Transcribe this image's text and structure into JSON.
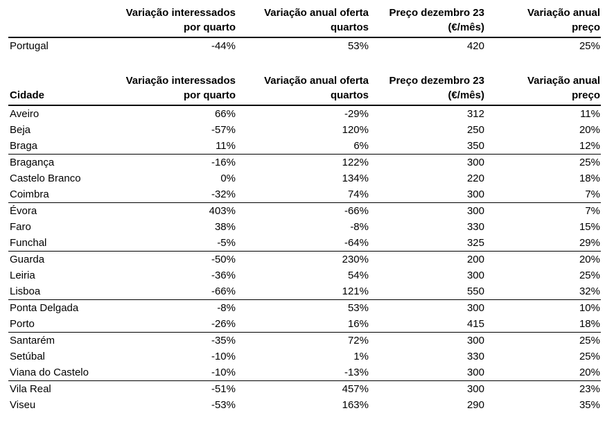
{
  "chart_data": {
    "type": "table",
    "column_headers": [
      {
        "line1": "Variação interessados",
        "line2": "por quarto"
      },
      {
        "line1": "Variação anual oferta",
        "line2": "quartos"
      },
      {
        "line1": "Preço dezembro 23",
        "line2": "(€/mês)"
      },
      {
        "line1": "Variação anual",
        "line2": "preço"
      }
    ],
    "summary": {
      "label": "Portugal",
      "values": [
        "-44%",
        "53%",
        "420",
        "25%"
      ]
    },
    "city_header": "Cidade",
    "rows": [
      {
        "city": "Aveiro",
        "values": [
          "66%",
          "-29%",
          "312",
          "11%"
        ],
        "group_end": false
      },
      {
        "city": "Beja",
        "values": [
          "-57%",
          "120%",
          "250",
          "20%"
        ],
        "group_end": false
      },
      {
        "city": "Braga",
        "values": [
          "11%",
          "6%",
          "350",
          "12%"
        ],
        "group_end": true
      },
      {
        "city": "Bragança",
        "values": [
          "-16%",
          "122%",
          "300",
          "25%"
        ],
        "group_end": false
      },
      {
        "city": "Castelo Branco",
        "values": [
          "0%",
          "134%",
          "220",
          "18%"
        ],
        "group_end": false
      },
      {
        "city": "Coimbra",
        "values": [
          "-32%",
          "74%",
          "300",
          "7%"
        ],
        "group_end": true
      },
      {
        "city": "Évora",
        "values": [
          "403%",
          "-66%",
          "300",
          "7%"
        ],
        "group_end": false
      },
      {
        "city": "Faro",
        "values": [
          "38%",
          "-8%",
          "330",
          "15%"
        ],
        "group_end": false
      },
      {
        "city": "Funchal",
        "values": [
          "-5%",
          "-64%",
          "325",
          "29%"
        ],
        "group_end": true
      },
      {
        "city": "Guarda",
        "values": [
          "-50%",
          "230%",
          "200",
          "20%"
        ],
        "group_end": false
      },
      {
        "city": "Leiria",
        "values": [
          "-36%",
          "54%",
          "300",
          "25%"
        ],
        "group_end": false
      },
      {
        "city": "Lisboa",
        "values": [
          "-66%",
          "121%",
          "550",
          "32%"
        ],
        "group_end": true
      },
      {
        "city": "Ponta Delgada",
        "values": [
          "-8%",
          "53%",
          "300",
          "10%"
        ],
        "group_end": false
      },
      {
        "city": "Porto",
        "values": [
          "-26%",
          "16%",
          "415",
          "18%"
        ],
        "group_end": true
      },
      {
        "city": "Santarém",
        "values": [
          "-35%",
          "72%",
          "300",
          "25%"
        ],
        "group_end": false
      },
      {
        "city": "Setúbal",
        "values": [
          "-10%",
          "1%",
          "330",
          "25%"
        ],
        "group_end": false
      },
      {
        "city": "Viana do Castelo",
        "values": [
          "-10%",
          "-13%",
          "300",
          "20%"
        ],
        "group_end": true
      },
      {
        "city": "Vila Real",
        "values": [
          "-51%",
          "457%",
          "300",
          "23%"
        ],
        "group_end": false
      },
      {
        "city": "Viseu",
        "values": [
          "-53%",
          "163%",
          "290",
          "35%"
        ],
        "group_end": false
      }
    ]
  }
}
